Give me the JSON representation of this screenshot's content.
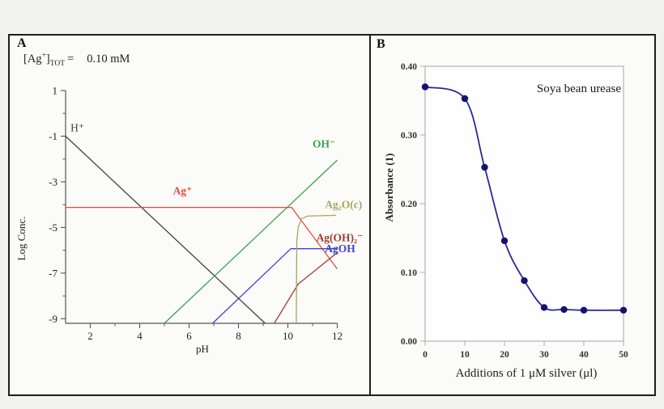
{
  "figure": {
    "outer_background": "#f2f2ef",
    "frame_border_color": "#1f1f1f"
  },
  "chart_data": [
    {
      "id": "silver-speciation-diagram",
      "type": "line",
      "panel_label": "A",
      "annotation": {
        "pre": "[Ag",
        "sup": "+",
        "post": "]",
        "sub": "TOT",
        "eq": "=",
        "value": "0.10 mM"
      },
      "xlabel": "pH",
      "ylabel": "Log Conc.",
      "xlim": [
        1,
        12
      ],
      "ylim": [
        -9.2,
        1
      ],
      "x_major_ticks": [
        2,
        4,
        6,
        8,
        10,
        12
      ],
      "x_minor_ticks": [
        3,
        5,
        7,
        9,
        11
      ],
      "y_major_ticks": [
        1,
        -1,
        -3,
        -5,
        -7,
        -9
      ],
      "y_minor_ticks": [
        0,
        -2,
        -4,
        -6,
        -8
      ],
      "grid": false,
      "axis_color": "#555555",
      "series": [
        {
          "name": "H+",
          "label": "H⁺",
          "color": "#404040",
          "bold": false,
          "points": [
            [
              1,
              -1
            ],
            [
              9.08,
              -9.2
            ]
          ],
          "label_pos": [
            1.2,
            -0.78
          ]
        },
        {
          "name": "OH-",
          "label": "OH⁻",
          "color": "#3da24b",
          "bold": true,
          "points": [
            [
              5,
              -9.2
            ],
            [
              12,
              -2.05
            ]
          ],
          "label_pos": [
            11.0,
            -1.5
          ]
        },
        {
          "name": "Ag+",
          "label": "Ag⁺",
          "color": "#e64a3c",
          "bold": true,
          "points": [
            [
              1,
              -4.12
            ],
            [
              10.15,
              -4.12
            ],
            [
              12,
              -6.82
            ]
          ],
          "label_pos": [
            5.35,
            -3.55
          ]
        },
        {
          "name": "AgOH",
          "label": "AgOH",
          "color": "#4040cf",
          "bold": true,
          "points": [
            [
              6.95,
              -9.2
            ],
            [
              10.12,
              -5.93
            ],
            [
              12,
              -5.93
            ]
          ],
          "label_pos": [
            11.5,
            -6.08
          ]
        },
        {
          "name": "Ag(OH)2-",
          "label": "Ag(OH)₂⁻",
          "color": "#a13a31",
          "bold": true,
          "points": [
            [
              9.45,
              -9.2
            ],
            [
              10.42,
              -7.48
            ],
            [
              12,
              -6.1
            ]
          ],
          "label_pos": [
            11.15,
            -5.6
          ]
        },
        {
          "name": "Ag2O(c)",
          "label": "Ag₂O(c)",
          "color": "#a6a65c",
          "bold": true,
          "points": [
            [
              10.34,
              -9.2
            ],
            [
              10.36,
              -5.6
            ],
            [
              10.42,
              -5.0
            ],
            [
              10.55,
              -4.62
            ],
            [
              10.8,
              -4.5
            ],
            [
              11.95,
              -4.47
            ]
          ],
          "label_pos": [
            11.5,
            -4.15
          ]
        }
      ]
    },
    {
      "id": "urease-absorbance-plot",
      "type": "line",
      "panel_label": "B",
      "title": "Soya bean urease",
      "xlabel": "Additions of 1 μM silver (μl)",
      "ylabel": "Absorbance (1)",
      "xlim": [
        0,
        50
      ],
      "ylim": [
        0,
        0.4
      ],
      "xticks": [
        0,
        10,
        20,
        30,
        40,
        50
      ],
      "yticks": [
        0.0,
        0.1,
        0.2,
        0.3,
        0.4
      ],
      "grid": false,
      "frame_color": "#b3b3b3",
      "line_color": "#2a2a96",
      "marker_color": "#14146e",
      "series": [
        {
          "name": "absorbance",
          "x": [
            0,
            10,
            15,
            20,
            25,
            30,
            35,
            40,
            50
          ],
          "y": [
            0.37,
            0.353,
            0.253,
            0.146,
            0.088,
            0.049,
            0.046,
            0.045,
            0.045
          ]
        }
      ]
    }
  ]
}
